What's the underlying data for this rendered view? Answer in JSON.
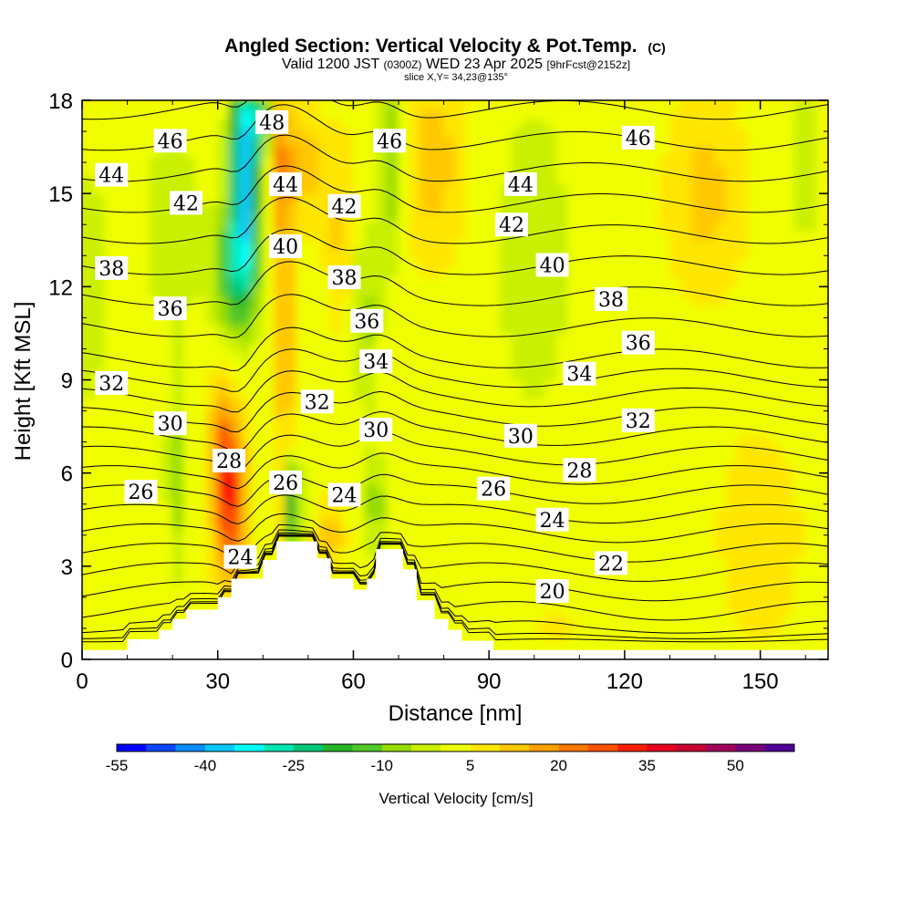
{
  "header": {
    "title_main": "Angled Section: Vertical Velocity & Pot.Temp.",
    "title_unit": "(C)",
    "valid_a": "Valid 1200 JST",
    "valid_small": "(0300Z)",
    "valid_b": "WED 23 Apr 2025",
    "forecast": "[9hrFcst@2152z]",
    "slice": "slice X,Y= 34,23@135°"
  },
  "chart_data": {
    "type": "heatmap",
    "xlabel": "Distance [nm]",
    "ylabel": "Height [Kft MSL]",
    "xlim": [
      0,
      165
    ],
    "ylim": [
      0,
      18
    ],
    "x_ticks": [
      0,
      30,
      60,
      90,
      120,
      150
    ],
    "y_ticks": [
      0,
      3,
      6,
      9,
      12,
      15,
      18
    ],
    "colorbar": {
      "label": "Vertical Velocity [cm/s]",
      "range": [
        -55,
        60
      ],
      "step": 5,
      "tick_labels": [
        "-55",
        "-40",
        "-25",
        "-10",
        "5",
        "20",
        "35",
        "50"
      ],
      "colors": [
        "#0000ff",
        "#0a46ff",
        "#0a8cff",
        "#0ac8ff",
        "#00ffff",
        "#00e6b4",
        "#00c878",
        "#28b428",
        "#50c828",
        "#96dc00",
        "#c8f000",
        "#f0ff00",
        "#ffe600",
        "#ffc800",
        "#ffa000",
        "#ff7800",
        "#ff5000",
        "#ff1e00",
        "#e6001e",
        "#c80032",
        "#a0005a",
        "#780078",
        "#500096"
      ]
    },
    "terrain_profile_kft": [
      [
        0,
        0.3
      ],
      [
        10,
        0.3
      ],
      [
        10,
        0.65
      ],
      [
        17,
        0.65
      ],
      [
        17,
        0.95
      ],
      [
        20,
        0.95
      ],
      [
        20,
        1.3
      ],
      [
        23,
        1.3
      ],
      [
        23,
        1.6
      ],
      [
        30,
        1.6
      ],
      [
        30,
        2.0
      ],
      [
        33,
        2.0
      ],
      [
        33,
        2.6
      ],
      [
        40,
        2.6
      ],
      [
        40,
        3.2
      ],
      [
        43,
        3.2
      ],
      [
        43,
        3.8
      ],
      [
        52,
        3.8
      ],
      [
        52,
        3.25
      ],
      [
        55,
        3.25
      ],
      [
        55,
        2.6
      ],
      [
        60,
        2.6
      ],
      [
        60,
        2.25
      ],
      [
        63,
        2.25
      ],
      [
        63,
        2.6
      ],
      [
        65,
        2.6
      ],
      [
        65,
        3.55
      ],
      [
        71,
        3.55
      ],
      [
        71,
        2.9
      ],
      [
        74,
        2.9
      ],
      [
        74,
        1.9
      ],
      [
        78,
        1.9
      ],
      [
        78,
        1.3
      ],
      [
        81,
        1.3
      ],
      [
        81,
        0.95
      ],
      [
        84,
        0.95
      ],
      [
        84,
        0.6
      ],
      [
        91,
        0.6
      ],
      [
        91,
        0.3
      ],
      [
        165,
        0.3
      ]
    ],
    "theta_contour_levels": [
      19,
      20,
      21,
      22,
      23,
      24,
      25,
      26,
      27,
      28,
      29,
      30,
      31,
      32,
      33,
      34,
      35,
      36,
      37,
      38,
      39,
      40,
      41,
      42,
      43,
      44,
      45,
      46,
      47,
      48
    ],
    "contour_labels": [
      {
        "text": "46",
        "x": 19.5,
        "y": 16.7
      },
      {
        "text": "44",
        "x": 6.5,
        "y": 15.6
      },
      {
        "text": "42",
        "x": 23,
        "y": 14.7
      },
      {
        "text": "38",
        "x": 6.5,
        "y": 12.6
      },
      {
        "text": "36",
        "x": 19.5,
        "y": 11.3
      },
      {
        "text": "32",
        "x": 6.5,
        "y": 8.9
      },
      {
        "text": "30",
        "x": 19.5,
        "y": 7.6
      },
      {
        "text": "28",
        "x": 32.5,
        "y": 6.4
      },
      {
        "text": "26",
        "x": 13,
        "y": 5.4
      },
      {
        "text": "24",
        "x": 35,
        "y": 3.3
      },
      {
        "text": "48",
        "x": 42,
        "y": 17.3
      },
      {
        "text": "44",
        "x": 45,
        "y": 15.3
      },
      {
        "text": "40",
        "x": 45,
        "y": 13.3
      },
      {
        "text": "26",
        "x": 45,
        "y": 5.7
      },
      {
        "text": "32",
        "x": 52,
        "y": 8.3
      },
      {
        "text": "42",
        "x": 58,
        "y": 14.6
      },
      {
        "text": "38",
        "x": 58,
        "y": 12.3
      },
      {
        "text": "24",
        "x": 58,
        "y": 5.3
      },
      {
        "text": "36",
        "x": 63,
        "y": 10.9
      },
      {
        "text": "34",
        "x": 65,
        "y": 9.6
      },
      {
        "text": "30",
        "x": 65,
        "y": 7.4
      },
      {
        "text": "46",
        "x": 68,
        "y": 16.7
      },
      {
        "text": "44",
        "x": 97,
        "y": 15.3
      },
      {
        "text": "42",
        "x": 95,
        "y": 14.0
      },
      {
        "text": "40",
        "x": 104,
        "y": 12.7
      },
      {
        "text": "30",
        "x": 97,
        "y": 7.2
      },
      {
        "text": "26",
        "x": 91,
        "y": 5.5
      },
      {
        "text": "38",
        "x": 117,
        "y": 11.6
      },
      {
        "text": "34",
        "x": 110,
        "y": 9.2
      },
      {
        "text": "28",
        "x": 110,
        "y": 6.1
      },
      {
        "text": "24",
        "x": 104,
        "y": 4.5
      },
      {
        "text": "20",
        "x": 104,
        "y": 2.2
      },
      {
        "text": "46",
        "x": 123,
        "y": 16.8
      },
      {
        "text": "36",
        "x": 123,
        "y": 10.2
      },
      {
        "text": "32",
        "x": 123,
        "y": 7.7
      },
      {
        "text": "22",
        "x": 117,
        "y": 3.1
      }
    ]
  }
}
